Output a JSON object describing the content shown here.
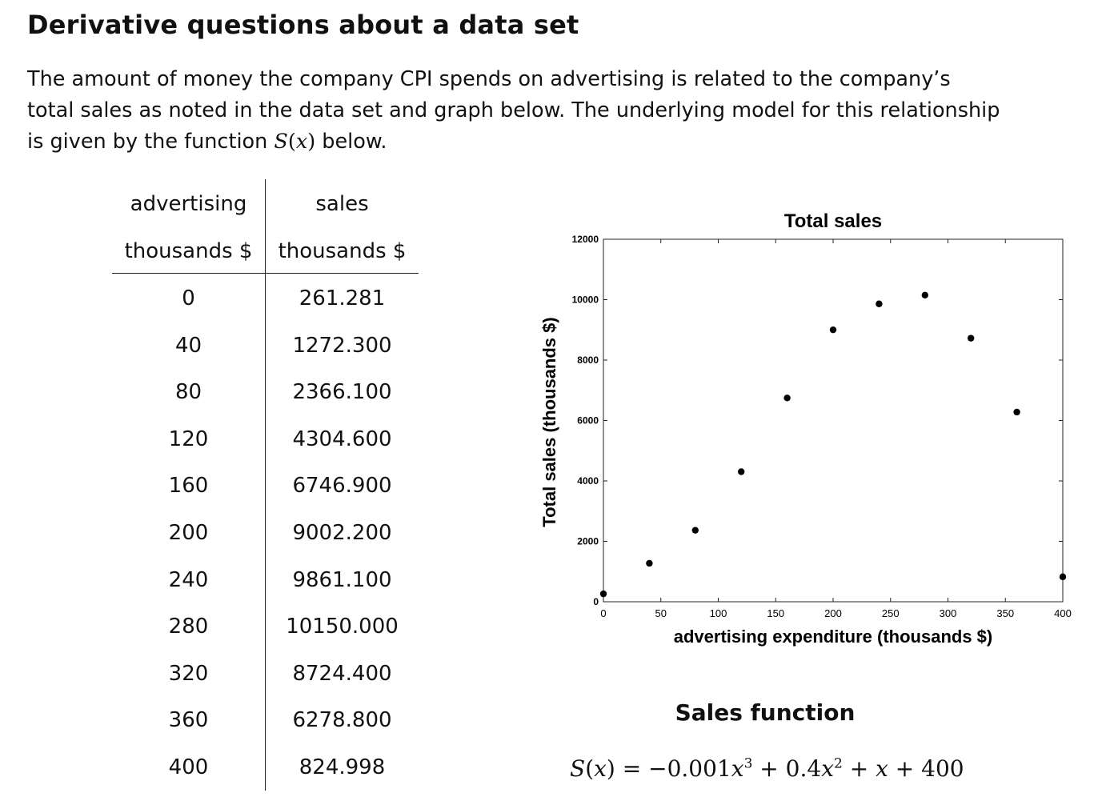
{
  "heading": "Derivative questions about a data set",
  "intro": {
    "line1": "The amount of money the company CPI spends on advertising is related to the company’s",
    "line2": "total sales as noted in the data set and graph below.  The underlying model for this relationship",
    "line3_before": "is given by the function ",
    "function_name": "S",
    "function_arg": "x",
    "line3_after": " below."
  },
  "table": {
    "headers": [
      [
        "advertising",
        "thousands $"
      ],
      [
        "sales",
        "thousands $"
      ]
    ],
    "rows": [
      [
        "0",
        "261.281"
      ],
      [
        "40",
        "1272.300"
      ],
      [
        "80",
        "2366.100"
      ],
      [
        "120",
        "4304.600"
      ],
      [
        "160",
        "6746.900"
      ],
      [
        "200",
        "9002.200"
      ],
      [
        "240",
        "9861.100"
      ],
      [
        "280",
        "10150.000"
      ],
      [
        "320",
        "8724.400"
      ],
      [
        "360",
        "6278.800"
      ],
      [
        "400",
        "824.998"
      ]
    ]
  },
  "chart_data": {
    "type": "scatter",
    "title": "Total sales",
    "xlabel": "advertising expenditure (thousands $)",
    "ylabel": "Total sales (thousands $)",
    "xlim": [
      0,
      400
    ],
    "ylim": [
      0,
      12000
    ],
    "xticks": [
      0,
      50,
      100,
      150,
      200,
      250,
      300,
      350,
      400
    ],
    "yticks": [
      0,
      2000,
      4000,
      6000,
      8000,
      10000,
      12000
    ],
    "grid": false,
    "x": [
      0,
      40,
      80,
      120,
      160,
      200,
      240,
      280,
      320,
      360,
      400
    ],
    "y": [
      261.281,
      1272.3,
      2366.1,
      4304.6,
      6746.9,
      9002.2,
      9861.1,
      10150.0,
      8724.4,
      6278.8,
      824.998
    ],
    "marker_color": "#000000"
  },
  "sales_function": {
    "title": "Sales function",
    "lhs_name": "S",
    "lhs_arg": "x",
    "eq": " = ",
    "minus": "−",
    "c3": "0.001",
    "var": "x",
    "exp3": "3",
    "plus": " + ",
    "c2": "0.4",
    "exp2": "2",
    "const": "400"
  }
}
